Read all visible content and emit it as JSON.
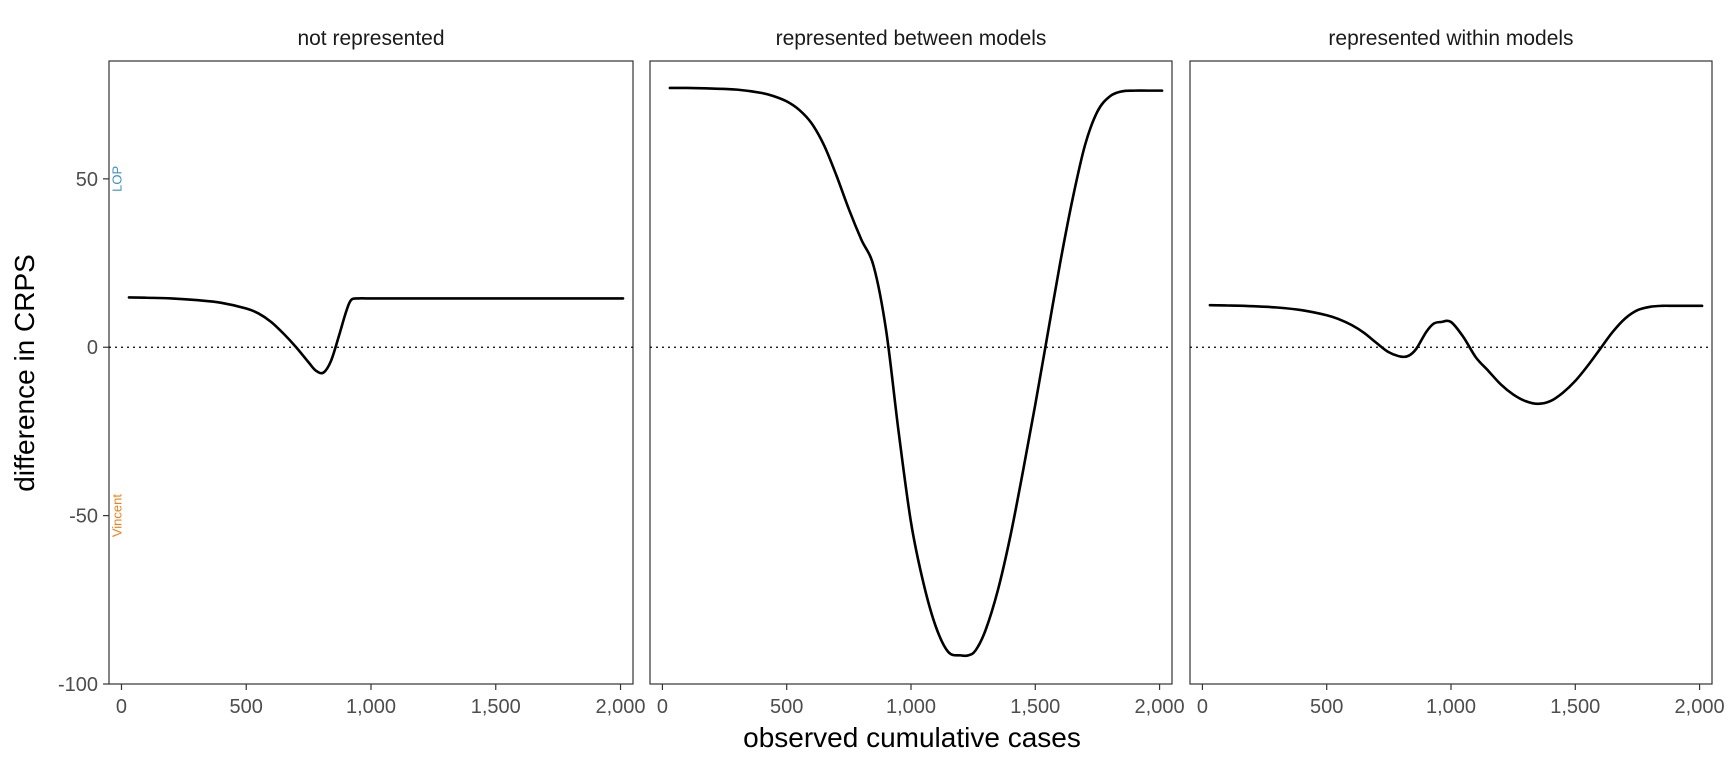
{
  "chart_data": {
    "type": "line",
    "xlabel": "observed cumulative cases",
    "ylabel": "difference in CRPS",
    "xlim": [
      -50,
      2050
    ],
    "ylim": [
      -100,
      85
    ],
    "x_ticks": [
      0,
      500,
      1000,
      1500,
      2000
    ],
    "x_tick_labels": [
      "0",
      "500",
      "1,000",
      "1,500",
      "2,000"
    ],
    "y_ticks": [
      50,
      0,
      -50,
      -100
    ],
    "y_tick_labels": [
      "50",
      "0",
      "-50",
      "-100"
    ],
    "reference_line": {
      "y": 0,
      "style": "dotted"
    },
    "annotations": [
      {
        "text": "LOP",
        "x": -20,
        "y": 50,
        "color": "#3b8fc4"
      },
      {
        "text": "Vincent",
        "x": -20,
        "y": -50,
        "color": "#f07f1a"
      }
    ],
    "line_color": "#000000",
    "grid": false,
    "panels": [
      {
        "title": "not represented",
        "x": [
          30,
          100,
          200,
          300,
          400,
          500,
          550,
          600,
          650,
          700,
          750,
          780,
          810,
          840,
          870,
          900,
          920,
          950,
          1000,
          1200,
          1500,
          1800,
          2010
        ],
        "y": [
          14.8,
          14.7,
          14.5,
          14,
          13.2,
          11.5,
          10,
          7.5,
          4,
          0,
          -4.5,
          -7,
          -7.5,
          -4,
          3,
          10.5,
          14,
          14.5,
          14.5,
          14.5,
          14.5,
          14.5,
          14.5
        ]
      },
      {
        "title": "represented between models",
        "x": [
          30,
          100,
          200,
          300,
          400,
          450,
          500,
          550,
          600,
          650,
          700,
          750,
          800,
          850,
          900,
          950,
          1000,
          1050,
          1100,
          1150,
          1200,
          1230,
          1260,
          1300,
          1350,
          1400,
          1450,
          1500,
          1550,
          1600,
          1650,
          1700,
          1750,
          1800,
          1850,
          1900,
          1950,
          2010
        ],
        "y": [
          77,
          77,
          76.8,
          76.5,
          75.5,
          74.5,
          73,
          70.5,
          66.5,
          60,
          51,
          41,
          32,
          24,
          5,
          -25,
          -52,
          -70,
          -83,
          -90.5,
          -91.5,
          -91.5,
          -90,
          -84,
          -72,
          -56,
          -37,
          -17,
          4,
          25,
          44,
          60,
          70,
          74.5,
          76,
          76.2,
          76.2,
          76.2
        ]
      },
      {
        "title": "represented within models",
        "x": [
          30,
          100,
          200,
          300,
          400,
          500,
          550,
          600,
          650,
          700,
          750,
          800,
          830,
          860,
          900,
          930,
          960,
          1000,
          1050,
          1100,
          1150,
          1200,
          1250,
          1300,
          1350,
          1400,
          1450,
          1500,
          1550,
          1600,
          1650,
          1700,
          1750,
          1800,
          1850,
          1900,
          2010
        ],
        "y": [
          12.5,
          12.4,
          12.2,
          11.8,
          11,
          9.5,
          8.3,
          6.6,
          4.3,
          1.3,
          -1.5,
          -2.8,
          -2.5,
          -0.5,
          4.5,
          7,
          7.5,
          7.5,
          3,
          -3,
          -7,
          -11,
          -14,
          -16,
          -16.8,
          -16,
          -13.5,
          -10,
          -5.5,
          -0.5,
          4.5,
          8.5,
          11,
          12,
          12.3,
          12.3,
          12.3
        ]
      }
    ]
  }
}
